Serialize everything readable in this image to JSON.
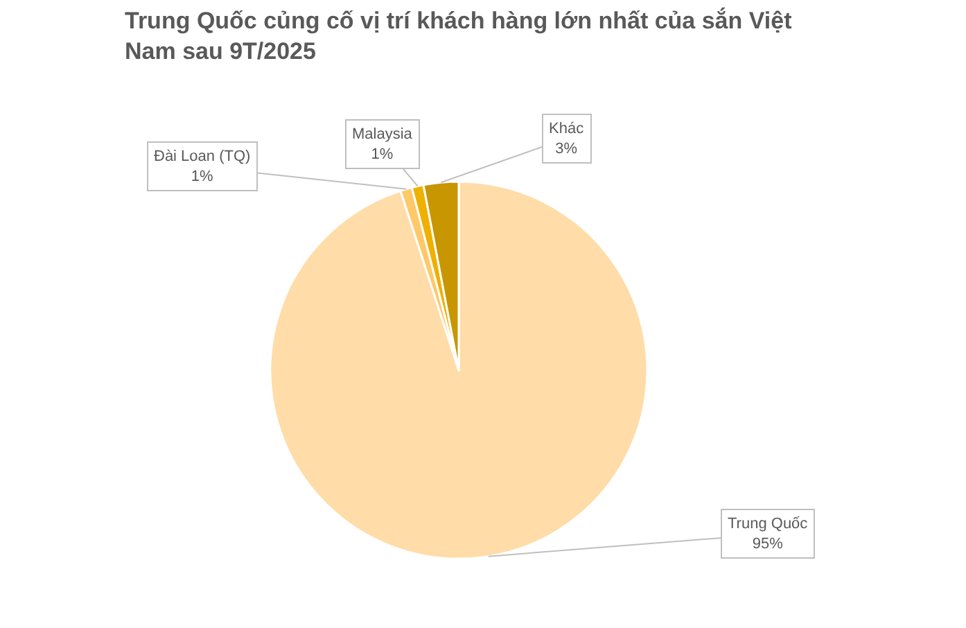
{
  "chart_data": {
    "type": "pie",
    "title": "Trung Quốc củng cố vị trí khách hàng lớn nhất của sắn Việt Nam sau 9T/2025",
    "categories": [
      "Trung Quốc",
      "Đài Loan (TQ)",
      "Malaysia",
      "Khác"
    ],
    "values": [
      95,
      1,
      1,
      3
    ],
    "value_labels": [
      "95%",
      "1%",
      "1%",
      "3%"
    ],
    "colors": [
      "#ffdca8",
      "#ffc869",
      "#f0b000",
      "#c89600"
    ]
  }
}
